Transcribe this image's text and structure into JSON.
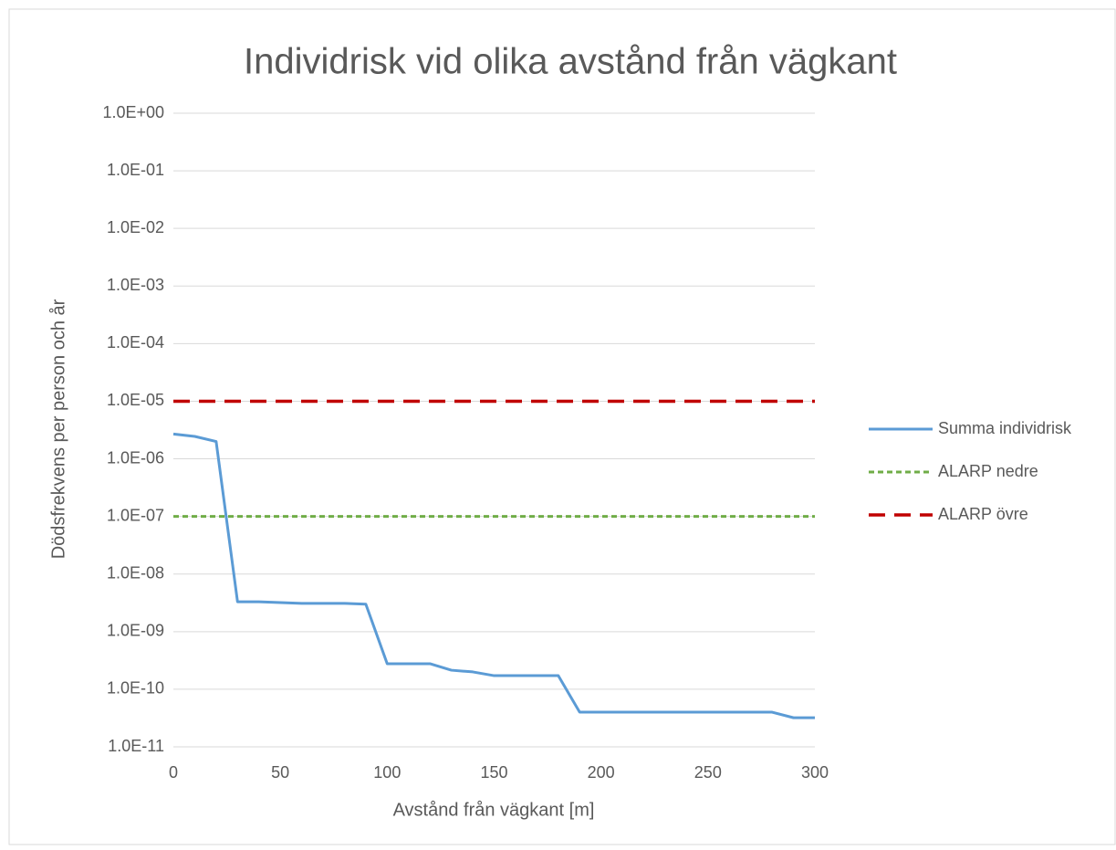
{
  "chart_data": {
    "type": "line",
    "title": "Individrisk vid olika avstånd från vägkant",
    "xlabel": "Avstånd från vägkant [m]",
    "ylabel": "Dödsfrekvens per person och år",
    "x": [
      0,
      10,
      20,
      30,
      40,
      50,
      60,
      70,
      80,
      90,
      100,
      110,
      120,
      130,
      140,
      150,
      160,
      170,
      180,
      190,
      200,
      210,
      220,
      230,
      240,
      250,
      260,
      270,
      280,
      290,
      300
    ],
    "series": [
      {
        "name": "Summa individrisk",
        "color": "#5b9bd5",
        "dash": "solid",
        "values": [
          2.7e-06,
          2.45e-06,
          2e-06,
          3.3e-09,
          3.3e-09,
          3.2e-09,
          3.1e-09,
          3.1e-09,
          3.1e-09,
          3e-09,
          2.77e-10,
          2.77e-10,
          2.77e-10,
          2.14e-10,
          2e-10,
          1.72e-10,
          1.72e-10,
          1.72e-10,
          1.72e-10,
          4e-11,
          4e-11,
          4e-11,
          4e-11,
          4e-11,
          4e-11,
          4e-11,
          4e-11,
          4e-11,
          4e-11,
          3.2e-11,
          3.2e-11
        ]
      },
      {
        "name": "ALARP nedre",
        "color": "#70ad47",
        "dash": "dotted",
        "values": [
          1e-07,
          1e-07,
          1e-07,
          1e-07,
          1e-07,
          1e-07,
          1e-07,
          1e-07,
          1e-07,
          1e-07,
          1e-07,
          1e-07,
          1e-07,
          1e-07,
          1e-07,
          1e-07,
          1e-07,
          1e-07,
          1e-07,
          1e-07,
          1e-07,
          1e-07,
          1e-07,
          1e-07,
          1e-07,
          1e-07,
          1e-07,
          1e-07,
          1e-07,
          1e-07,
          1e-07
        ]
      },
      {
        "name": "ALARP övre",
        "color": "#c00000",
        "dash": "dashed",
        "values": [
          1e-05,
          1e-05,
          1e-05,
          1e-05,
          1e-05,
          1e-05,
          1e-05,
          1e-05,
          1e-05,
          1e-05,
          1e-05,
          1e-05,
          1e-05,
          1e-05,
          1e-05,
          1e-05,
          1e-05,
          1e-05,
          1e-05,
          1e-05,
          1e-05,
          1e-05,
          1e-05,
          1e-05,
          1e-05,
          1e-05,
          1e-05,
          1e-05,
          1e-05,
          1e-05,
          1e-05
        ]
      }
    ],
    "xlim": [
      0,
      300
    ],
    "xticks": [
      0,
      50,
      100,
      150,
      200,
      250,
      300
    ],
    "ylim": [
      1e-11,
      1
    ],
    "ylog": true,
    "yticks": [
      {
        "value": 1,
        "label": "1.0E+00"
      },
      {
        "value": 0.1,
        "label": "1.0E-01"
      },
      {
        "value": 0.01,
        "label": "1.0E-02"
      },
      {
        "value": 0.001,
        "label": "1.0E-03"
      },
      {
        "value": 0.0001,
        "label": "1.0E-04"
      },
      {
        "value": 1e-05,
        "label": "1.0E-05"
      },
      {
        "value": 1e-06,
        "label": "1.0E-06"
      },
      {
        "value": 1e-07,
        "label": "1.0E-07"
      },
      {
        "value": 1e-08,
        "label": "1.0E-08"
      },
      {
        "value": 1e-09,
        "label": "1.0E-09"
      },
      {
        "value": 1e-10,
        "label": "1.0E-10"
      },
      {
        "value": 1e-11,
        "label": "1.0E-11"
      }
    ],
    "grid": true,
    "legend": "right"
  }
}
